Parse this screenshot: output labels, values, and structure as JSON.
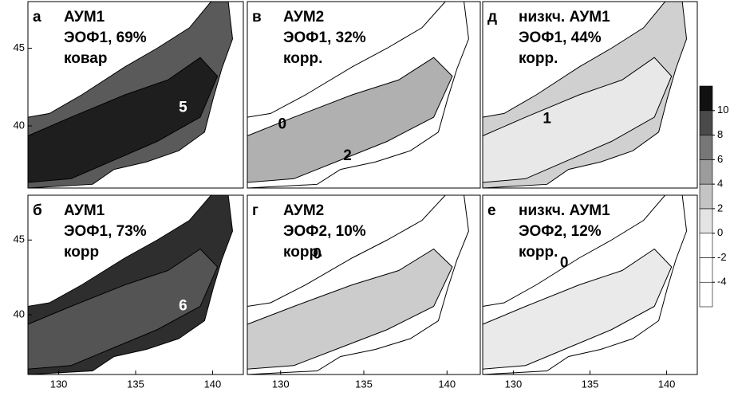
{
  "chart_data": [
    {
      "type": "map",
      "panel": "а",
      "title": [
        "АУМ1",
        "ЭОФ1, 69%",
        "ковар"
      ],
      "annotations": [
        "5"
      ],
      "ylim": [
        36,
        48
      ],
      "yticks": [
        40,
        45
      ]
    },
    {
      "type": "map",
      "panel": "в",
      "title": [
        "АУМ2",
        "ЭОФ1, 32%",
        "корр."
      ],
      "annotations": [
        "0",
        "2"
      ]
    },
    {
      "type": "map",
      "panel": "д",
      "title": [
        "низкч. АУМ1",
        "ЭОФ1, 44%",
        "корр."
      ],
      "annotations": [
        "1"
      ]
    },
    {
      "type": "map",
      "panel": "б",
      "title": [
        "АУМ1",
        "ЭОФ1, 73%",
        "корр"
      ],
      "annotations": [
        "6"
      ],
      "xlim": [
        128,
        142
      ],
      "xticks": [
        130,
        135,
        140
      ],
      "ylim": [
        36,
        48
      ],
      "yticks": [
        40,
        45
      ]
    },
    {
      "type": "map",
      "panel": "г",
      "title": [
        "АУМ2",
        "ЭОФ2, 10%",
        "корр."
      ],
      "annotations": [
        "0"
      ],
      "xlim": [
        128,
        142
      ],
      "xticks": [
        130,
        135,
        140
      ]
    },
    {
      "type": "map",
      "panel": "е",
      "title": [
        "низкч. АУМ1",
        "ЭОФ2, 12%",
        "корр."
      ],
      "annotations": [
        "0"
      ],
      "xlim": [
        128,
        142
      ],
      "xticks": [
        130,
        135,
        140
      ]
    },
    {
      "type": "colorbar",
      "ylim": [
        -6,
        12
      ],
      "yticks": [
        10,
        8,
        6,
        4,
        2,
        0,
        -2,
        -4
      ],
      "colors": [
        "#ffffff",
        "#ffffff",
        "#ffffff",
        "#e4e4e4",
        "#c4c4c4",
        "#9c9c9c",
        "#777777",
        "#4a4a4a",
        "#111111"
      ]
    }
  ]
}
